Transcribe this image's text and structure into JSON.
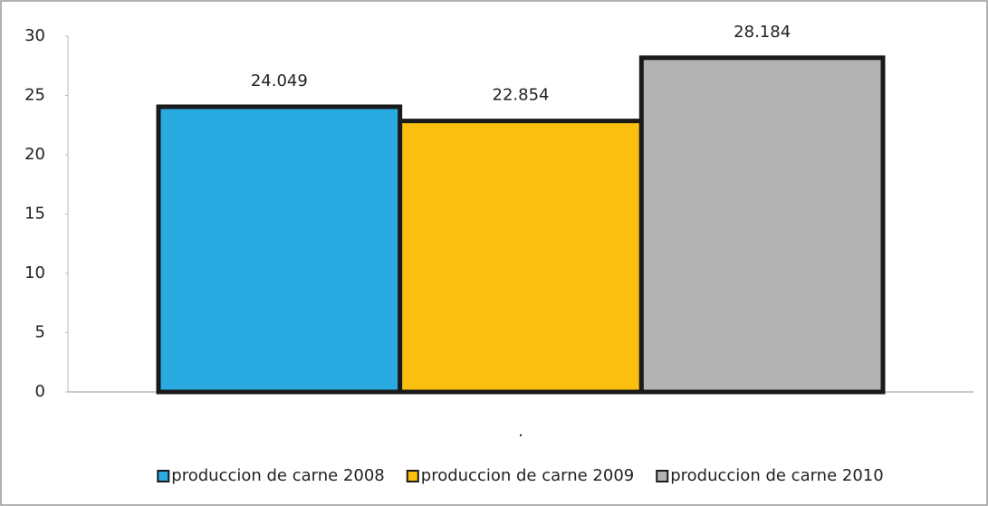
{
  "chart_data": {
    "type": "bar",
    "categories": [
      "."
    ],
    "series": [
      {
        "name": "produccion de carne 2008",
        "color": "#29abe2",
        "values": [
          24.049
        ]
      },
      {
        "name": "produccion de carne 2009",
        "color": "#fbbf10",
        "values": [
          22.854
        ]
      },
      {
        "name": "produccion de carne 2010",
        "color": "#b3b3b3",
        "values": [
          28.184
        ]
      }
    ],
    "ylim": [
      0,
      30
    ],
    "yticks": [
      0,
      5,
      10,
      15,
      20,
      25,
      30
    ],
    "grid": false,
    "legend": "bottom"
  }
}
